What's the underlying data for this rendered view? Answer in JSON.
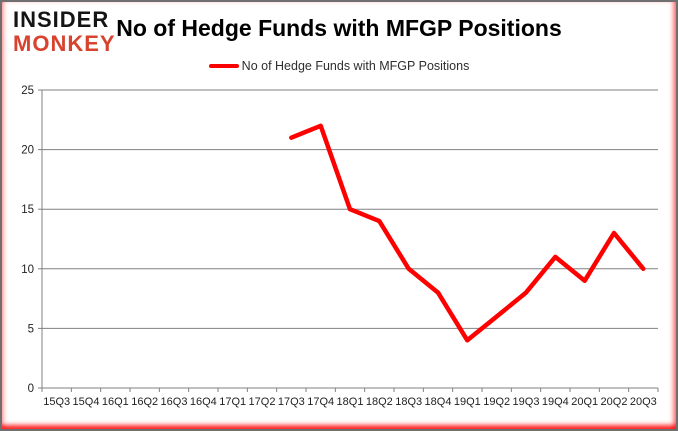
{
  "logo": {
    "line1": "INSIDER",
    "line2": "MONKEY"
  },
  "title": "No of Hedge Funds with MFGP Positions",
  "legend": {
    "label": "No of Hedge Funds with MFGP Positions"
  },
  "colors": {
    "series": "#ff0000",
    "grid": "#808080",
    "axis_text": "#1f1f1f",
    "title_text": "#000000",
    "logo_black": "#141414",
    "logo_red": "#d8432f",
    "frame_border": "#6f6f6f",
    "frame_glow": "#ff0000"
  },
  "chart_data": {
    "type": "line",
    "title": "No of Hedge Funds with MFGP Positions",
    "xlabel": "",
    "ylabel": "",
    "categories": [
      "15Q3",
      "15Q4",
      "16Q1",
      "16Q2",
      "16Q3",
      "16Q4",
      "17Q1",
      "17Q2",
      "17Q3",
      "17Q4",
      "18Q1",
      "18Q2",
      "18Q3",
      "18Q4",
      "19Q1",
      "19Q2",
      "19Q3",
      "19Q4",
      "20Q1",
      "20Q2",
      "20Q3"
    ],
    "series": [
      {
        "name": "No of Hedge Funds with MFGP Positions",
        "color": "#ff0000",
        "values": [
          null,
          null,
          null,
          null,
          null,
          null,
          null,
          null,
          21,
          22,
          15,
          14,
          10,
          8,
          4,
          6,
          8,
          11,
          9,
          13,
          10
        ]
      }
    ],
    "ylim": [
      0,
      25
    ],
    "ytick_interval": 5,
    "grid": true,
    "legend_position": "top-center"
  }
}
